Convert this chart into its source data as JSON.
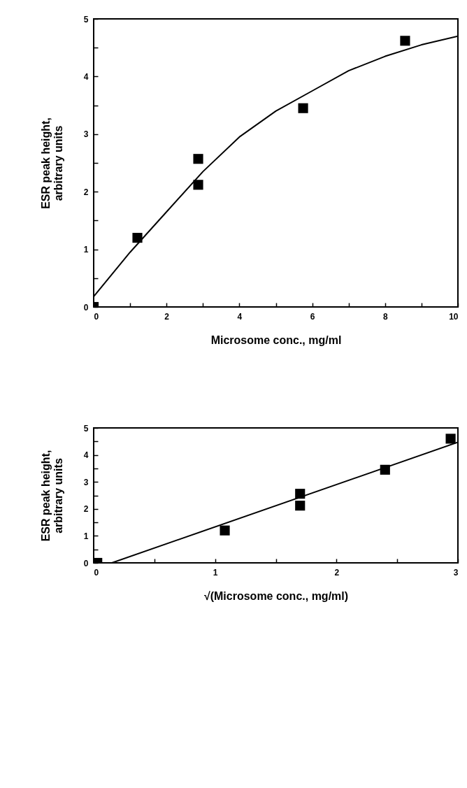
{
  "chart_data": [
    {
      "type": "scatter",
      "xlabel": "Microsome conc.,  mg/ml",
      "ylabel": "ESR peak height,\narbitrary units",
      "xlim": [
        0,
        10
      ],
      "ylim": [
        0,
        5
      ],
      "xticks": [
        0,
        {
          "value": 1,
          "label": null
        },
        2,
        {
          "value": 3,
          "label": null
        },
        4,
        {
          "value": 5,
          "label": null
        },
        6,
        {
          "value": 7,
          "label": null
        },
        8,
        {
          "value": 9,
          "label": null
        },
        10
      ],
      "yticks": [
        0,
        {
          "value": 0.5,
          "label": null
        },
        1,
        {
          "value": 1.5,
          "label": null
        },
        2,
        {
          "value": 2.5,
          "label": null
        },
        3,
        {
          "value": 3.5,
          "label": null
        },
        4,
        {
          "value": 4.5,
          "label": null
        },
        5
      ],
      "grid": false,
      "series": [
        {
          "marker": "square",
          "color": "#000000",
          "x": [
            0,
            1.2,
            2.87,
            2.87,
            5.75,
            8.55
          ],
          "values": [
            0,
            1.2,
            2.57,
            2.12,
            3.45,
            4.62
          ]
        },
        {
          "type": "line",
          "color": "#000000",
          "x": [
            0,
            1,
            2,
            3,
            4,
            5,
            6,
            7,
            8,
            9,
            10
          ],
          "values": [
            0.18,
            0.95,
            1.65,
            2.35,
            2.95,
            3.4,
            3.75,
            4.1,
            4.35,
            4.55,
            4.7
          ]
        }
      ]
    },
    {
      "type": "scatter",
      "xlabel": "√(Microsome  conc., mg/ml)",
      "ylabel": "ESR peak height,\narbitrary units",
      "xlim": [
        0,
        3
      ],
      "ylim": [
        0,
        5
      ],
      "xticks": [
        0,
        {
          "value": 0.5,
          "label": null
        },
        1,
        {
          "value": 1.5,
          "label": null
        },
        2,
        {
          "value": 2.5,
          "label": null
        },
        3
      ],
      "yticks": [
        0,
        {
          "value": 0.5,
          "label": null
        },
        1,
        {
          "value": 1.5,
          "label": null
        },
        2,
        {
          "value": 2.5,
          "label": null
        },
        3,
        {
          "value": 3.5,
          "label": null
        },
        4,
        {
          "value": 4.5,
          "label": null
        },
        5
      ],
      "grid": false,
      "series": [
        {
          "marker": "square",
          "color": "#000000",
          "x": [
            0.03,
            1.08,
            1.7,
            1.7,
            2.4,
            2.94
          ],
          "values": [
            0,
            1.2,
            2.56,
            2.12,
            3.45,
            4.6
          ]
        },
        {
          "type": "line",
          "color": "#000000",
          "x": [
            0.15,
            3
          ],
          "values": [
            0,
            4.47
          ]
        }
      ]
    }
  ]
}
